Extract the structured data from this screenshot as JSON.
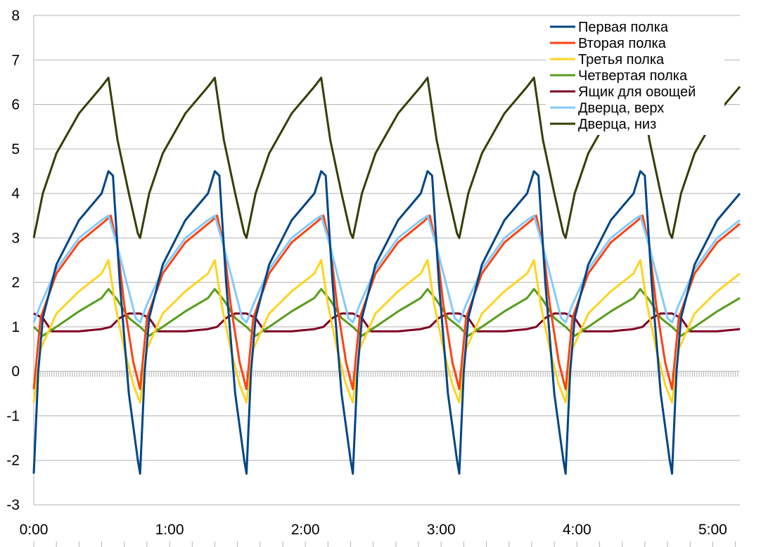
{
  "chart_data": {
    "type": "line",
    "title": "",
    "xlabel": "",
    "ylabel": "",
    "xlim": [
      "0:00",
      "5:12"
    ],
    "ylim": [
      -3,
      8
    ],
    "y_ticks": [
      8,
      7,
      6,
      5,
      4,
      3,
      2,
      1,
      0,
      -1,
      -2,
      -3
    ],
    "x_ticks": [
      "0:00",
      "1:00",
      "2:00",
      "3:00",
      "4:00",
      "5:00"
    ],
    "grid": "horizontal",
    "legend_position": "top-right",
    "cycle_period": "0:47",
    "series": [
      {
        "name": "Первая полка",
        "color": "#004586",
        "cycle_points": [
          [
            "0:00",
            -2.3
          ],
          [
            "0:02",
            0.0
          ],
          [
            "0:04",
            1.2
          ],
          [
            "0:10",
            2.4
          ],
          [
            "0:20",
            3.4
          ],
          [
            "0:30",
            4.0
          ],
          [
            "0:33",
            4.5
          ],
          [
            "0:35",
            4.4
          ],
          [
            "0:38",
            2.0
          ],
          [
            "0:42",
            -0.5
          ],
          [
            "0:46",
            -2.0
          ],
          [
            "0:47",
            -2.3
          ]
        ]
      },
      {
        "name": "Вторая полка",
        "color": "#ff420e",
        "cycle_points": [
          [
            "0:00",
            -0.4
          ],
          [
            "0:03",
            1.2
          ],
          [
            "0:10",
            2.2
          ],
          [
            "0:20",
            2.9
          ],
          [
            "0:32",
            3.4
          ],
          [
            "0:34",
            3.5
          ],
          [
            "0:37",
            2.8
          ],
          [
            "0:40",
            1.5
          ],
          [
            "0:44",
            0.2
          ],
          [
            "0:47",
            -0.4
          ]
        ]
      },
      {
        "name": "Третья полка",
        "color": "#ffd320",
        "cycle_points": [
          [
            "0:00",
            -0.7
          ],
          [
            "0:03",
            0.5
          ],
          [
            "0:10",
            1.3
          ],
          [
            "0:20",
            1.8
          ],
          [
            "0:30",
            2.2
          ],
          [
            "0:33",
            2.5
          ],
          [
            "0:36",
            1.5
          ],
          [
            "0:40",
            0.5
          ],
          [
            "0:44",
            -0.3
          ],
          [
            "0:47",
            -0.7
          ]
        ]
      },
      {
        "name": "Четвертая полка",
        "color": "#579d1c",
        "cycle_points": [
          [
            "0:00",
            1.0
          ],
          [
            "0:04",
            0.8
          ],
          [
            "0:10",
            1.0
          ],
          [
            "0:20",
            1.35
          ],
          [
            "0:30",
            1.65
          ],
          [
            "0:33",
            1.85
          ],
          [
            "0:37",
            1.6
          ],
          [
            "0:42",
            1.2
          ],
          [
            "0:47",
            1.0
          ]
        ]
      },
      {
        "name": "Ящик для овощей",
        "color": "#7e0021",
        "cycle_points": [
          [
            "0:00",
            1.3
          ],
          [
            "0:04",
            1.2
          ],
          [
            "0:08",
            0.9
          ],
          [
            "0:20",
            0.9
          ],
          [
            "0:30",
            0.95
          ],
          [
            "0:34",
            1.0
          ],
          [
            "0:38",
            1.2
          ],
          [
            "0:42",
            1.3
          ],
          [
            "0:47",
            1.3
          ]
        ]
      },
      {
        "name": "Дверца, верх",
        "color": "#83caff",
        "cycle_points": [
          [
            "0:00",
            1.1
          ],
          [
            "0:03",
            1.5
          ],
          [
            "0:10",
            2.3
          ],
          [
            "0:20",
            3.0
          ],
          [
            "0:30",
            3.4
          ],
          [
            "0:33",
            3.5
          ],
          [
            "0:37",
            2.8
          ],
          [
            "0:42",
            1.8
          ],
          [
            "0:45",
            1.2
          ],
          [
            "0:47",
            1.1
          ]
        ]
      },
      {
        "name": "Дверца, низ",
        "color": "#314004",
        "cycle_points": [
          [
            "0:00",
            3.0
          ],
          [
            "0:04",
            4.0
          ],
          [
            "0:10",
            4.9
          ],
          [
            "0:20",
            5.8
          ],
          [
            "0:30",
            6.4
          ],
          [
            "0:33",
            6.6
          ],
          [
            "0:37",
            5.2
          ],
          [
            "0:42",
            4.0
          ],
          [
            "0:46",
            3.1
          ],
          [
            "0:47",
            3.0
          ]
        ]
      }
    ]
  }
}
